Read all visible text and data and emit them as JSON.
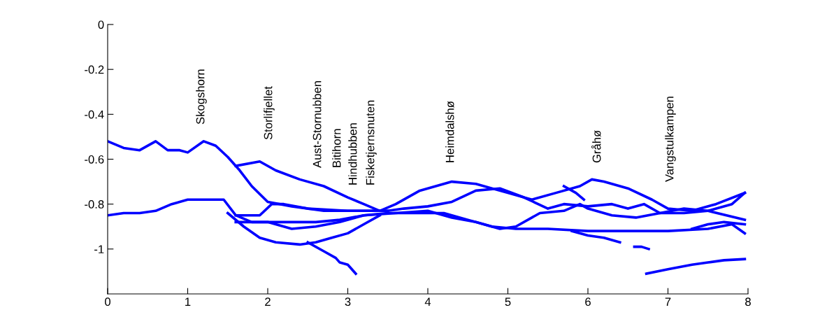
{
  "chart_data": {
    "type": "line",
    "xlim": [
      0,
      8
    ],
    "ylim": [
      -1.2,
      0
    ],
    "xticks": [
      0,
      1,
      2,
      3,
      4,
      5,
      6,
      7,
      8
    ],
    "yticks": [
      0,
      -0.2,
      -0.4,
      -0.6,
      -0.8,
      -1
    ],
    "grid": false,
    "legend": false,
    "marker": "none",
    "line_style": "solid",
    "series": [
      {
        "color": "#0000ff",
        "x": [
          0,
          0.2,
          0.4,
          0.6,
          0.75,
          0.9,
          1.0,
          1.2,
          1.35,
          1.5,
          1.65,
          1.8,
          2.0,
          2.3,
          2.7,
          3.0,
          3.3,
          3.5
        ],
        "values": [
          -0.52,
          -0.55,
          -0.56,
          -0.52,
          -0.56,
          -0.56,
          -0.57,
          -0.52,
          -0.54,
          -0.59,
          -0.65,
          -0.72,
          -0.79,
          -0.81,
          -0.83,
          -0.83,
          -0.83,
          -0.83
        ]
      },
      {
        "color": "#0000ff",
        "x": [
          1.6,
          1.9,
          2.1,
          2.4,
          2.7,
          3.0,
          3.2,
          3.4,
          3.6,
          3.9,
          4.3,
          4.6,
          5.0,
          5.3,
          5.6,
          5.9,
          6.05,
          6.2,
          6.5,
          6.8,
          7.0,
          7.3,
          7.6,
          7.96
        ],
        "values": [
          -0.63,
          -0.61,
          -0.65,
          -0.69,
          -0.72,
          -0.77,
          -0.8,
          -0.83,
          -0.8,
          -0.74,
          -0.7,
          -0.71,
          -0.75,
          -0.78,
          -0.75,
          -0.72,
          -0.69,
          -0.7,
          -0.73,
          -0.78,
          -0.82,
          -0.83,
          -0.8,
          -0.75
        ]
      },
      {
        "color": "#0000ff",
        "x": [
          0,
          0.2,
          0.4,
          0.6,
          0.8,
          1.0,
          1.2,
          1.45,
          1.6,
          1.8,
          2.0,
          2.3,
          2.6,
          2.9,
          3.2,
          3.5,
          3.9,
          4.2,
          4.5,
          4.8,
          5.1,
          5.5,
          6.0,
          6.5,
          7.0,
          7.5,
          7.8,
          7.96
        ],
        "values": [
          -0.85,
          -0.84,
          -0.84,
          -0.83,
          -0.8,
          -0.78,
          -0.78,
          -0.78,
          -0.85,
          -0.88,
          -0.88,
          -0.88,
          -0.88,
          -0.87,
          -0.85,
          -0.84,
          -0.84,
          -0.84,
          -0.87,
          -0.9,
          -0.91,
          -0.91,
          -0.92,
          -0.92,
          -0.92,
          -0.91,
          -0.89,
          -0.93
        ]
      },
      {
        "color": "#0000ff",
        "x": [
          1.5,
          1.7,
          1.9,
          2.1,
          2.4,
          2.6,
          2.8,
          3.0,
          3.2,
          3.4
        ],
        "values": [
          -0.84,
          -0.9,
          -0.95,
          -0.97,
          -0.98,
          -0.97,
          -0.95,
          -0.93,
          -0.89,
          -0.85
        ]
      },
      {
        "color": "#0000ff",
        "x": [
          2.5,
          2.7,
          2.85,
          2.9,
          3.0,
          3.1
        ],
        "values": [
          -0.97,
          -1.01,
          -1.04,
          -1.06,
          -1.07,
          -1.11
        ]
      },
      {
        "color": "#0000ff",
        "x": [
          1.6,
          1.9,
          2.05,
          2.2,
          2.5,
          3.0,
          3.5,
          3.7,
          4.0,
          4.3,
          4.6,
          4.9,
          5.2,
          5.5,
          5.7,
          6.0,
          6.3,
          6.5,
          6.7,
          6.9,
          7.2,
          7.5,
          7.8,
          7.96
        ],
        "values": [
          -0.85,
          -0.85,
          -0.8,
          -0.8,
          -0.82,
          -0.83,
          -0.83,
          -0.82,
          -0.81,
          -0.79,
          -0.74,
          -0.73,
          -0.77,
          -0.82,
          -0.8,
          -0.81,
          -0.8,
          -0.82,
          -0.8,
          -0.84,
          -0.84,
          -0.83,
          -0.8,
          -0.75
        ]
      },
      {
        "color": "#0000ff",
        "x": [
          1.6,
          2.0,
          2.3,
          2.6,
          2.9,
          3.2,
          3.6,
          4.0,
          4.3,
          4.6,
          4.9,
          5.1,
          5.4,
          5.7,
          5.9,
          6.0,
          6.3,
          6.6,
          6.9,
          7.2,
          7.5,
          7.96
        ],
        "values": [
          -0.88,
          -0.88,
          -0.91,
          -0.9,
          -0.88,
          -0.85,
          -0.84,
          -0.83,
          -0.86,
          -0.88,
          -0.91,
          -0.9,
          -0.84,
          -0.83,
          -0.8,
          -0.82,
          -0.85,
          -0.86,
          -0.84,
          -0.82,
          -0.83,
          -0.87
        ]
      },
      {
        "color": "#0000ff",
        "x": [
          5.7,
          5.85,
          5.95
        ],
        "values": [
          -0.72,
          -0.75,
          -0.78
        ]
      },
      {
        "color": "#0000ff",
        "x": [
          5.8,
          6.0,
          6.2,
          6.4
        ],
        "values": [
          -0.92,
          -0.94,
          -0.95,
          -0.97
        ]
      },
      {
        "color": "#0000ff",
        "x": [
          6.58,
          6.67,
          6.76
        ],
        "values": [
          -0.99,
          -0.99,
          -1.0
        ]
      },
      {
        "color": "#0000ff",
        "x": [
          6.73,
          7.0,
          7.3,
          7.5,
          7.7,
          7.96
        ],
        "values": [
          -1.11,
          -1.09,
          -1.07,
          -1.06,
          -1.05,
          -1.045
        ]
      },
      {
        "color": "#0000ff",
        "x": [
          7.3,
          7.5,
          7.7,
          7.96
        ],
        "values": [
          -0.91,
          -0.89,
          -0.88,
          -0.89
        ]
      }
    ],
    "annotations": [
      "Skogshorn",
      "Storlifjellet",
      "Aust-Stornubben",
      "Bitihorn",
      "Hindhubben",
      "Fisketjernsnuten",
      "Heimdalshø",
      "Gråhø",
      "Vangstulkampen"
    ]
  }
}
